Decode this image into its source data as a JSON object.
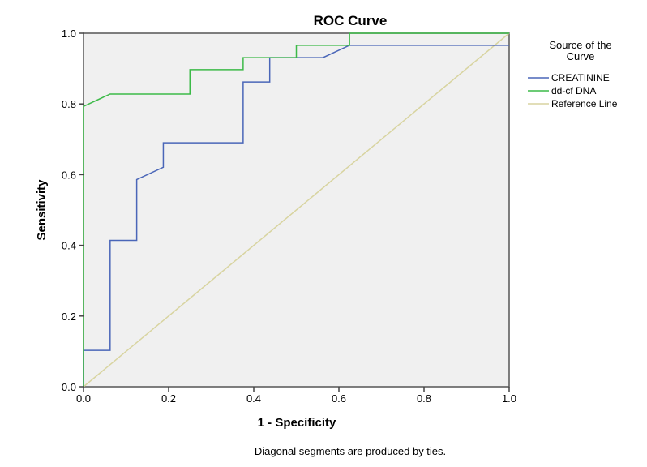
{
  "chart_data": {
    "type": "line",
    "title": "ROC Curve",
    "xlabel": "1 - Specificity",
    "ylabel": "Sensitivity",
    "xlim": [
      0,
      1
    ],
    "ylim": [
      0,
      1
    ],
    "xticks": [
      "0.0",
      "0.2",
      "0.4",
      "0.6",
      "0.8",
      "1.0"
    ],
    "yticks": [
      "0.0",
      "0.2",
      "0.4",
      "0.6",
      "0.8",
      "1.0"
    ],
    "grid": false,
    "legend_title": "Source of the Curve",
    "legend_placement": "right",
    "footnote": "Diagonal segments are produced by ties.",
    "series": [
      {
        "name": "CREATININE",
        "color": "#4a66b8",
        "x": [
          0,
          0,
          0.0625,
          0.0625,
          0.125,
          0.125,
          0.1875,
          0.1875,
          0.375,
          0.375,
          0.4375,
          0.4375,
          0.5625,
          0.625,
          1
        ],
        "y": [
          0,
          0.103,
          0.103,
          0.414,
          0.414,
          0.586,
          0.621,
          0.69,
          0.69,
          0.862,
          0.862,
          0.931,
          0.931,
          0.966,
          0.966
        ]
      },
      {
        "name": "dd-cf DNA",
        "color": "#3cba48",
        "x": [
          0,
          0,
          0.0625,
          0.25,
          0.25,
          0.375,
          0.375,
          0.5,
          0.5,
          0.625,
          0.625,
          1
        ],
        "y": [
          0,
          0.793,
          0.828,
          0.828,
          0.897,
          0.897,
          0.931,
          0.931,
          0.966,
          0.966,
          1,
          1
        ]
      },
      {
        "name": "Reference Line",
        "color": "#d8d4a0",
        "x": [
          0,
          1
        ],
        "y": [
          0,
          1
        ]
      }
    ]
  }
}
